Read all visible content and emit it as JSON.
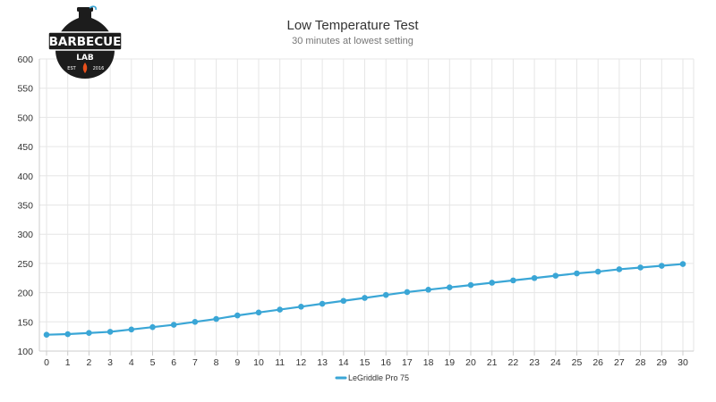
{
  "logo": {
    "name": "BARBECUE",
    "sub": "LAB",
    "est": "EST",
    "year": "2016"
  },
  "chart_data": {
    "type": "line",
    "title": "Low Temperature Test",
    "subtitle": "30 minutes at lowest setting",
    "xlabel": "",
    "ylabel": "",
    "x": [
      0,
      1,
      2,
      3,
      4,
      5,
      6,
      7,
      8,
      9,
      10,
      11,
      12,
      13,
      14,
      15,
      16,
      17,
      18,
      19,
      20,
      21,
      22,
      23,
      24,
      25,
      26,
      27,
      28,
      29,
      30
    ],
    "xlim": [
      0,
      30
    ],
    "ylim": [
      100,
      600
    ],
    "yticks": [
      100,
      150,
      200,
      250,
      300,
      350,
      400,
      450,
      500,
      550,
      600
    ],
    "grid": true,
    "legend_position": "bottom-center",
    "series": [
      {
        "name": "LeGriddle Pro 75",
        "color": "#3aa6d6",
        "values": [
          128,
          129,
          131,
          133,
          137,
          141,
          145,
          150,
          155,
          161,
          166,
          171,
          176,
          181,
          186,
          191,
          196,
          201,
          205,
          209,
          213,
          217,
          221,
          225,
          229,
          233,
          236,
          240,
          243,
          246,
          249
        ]
      }
    ]
  }
}
